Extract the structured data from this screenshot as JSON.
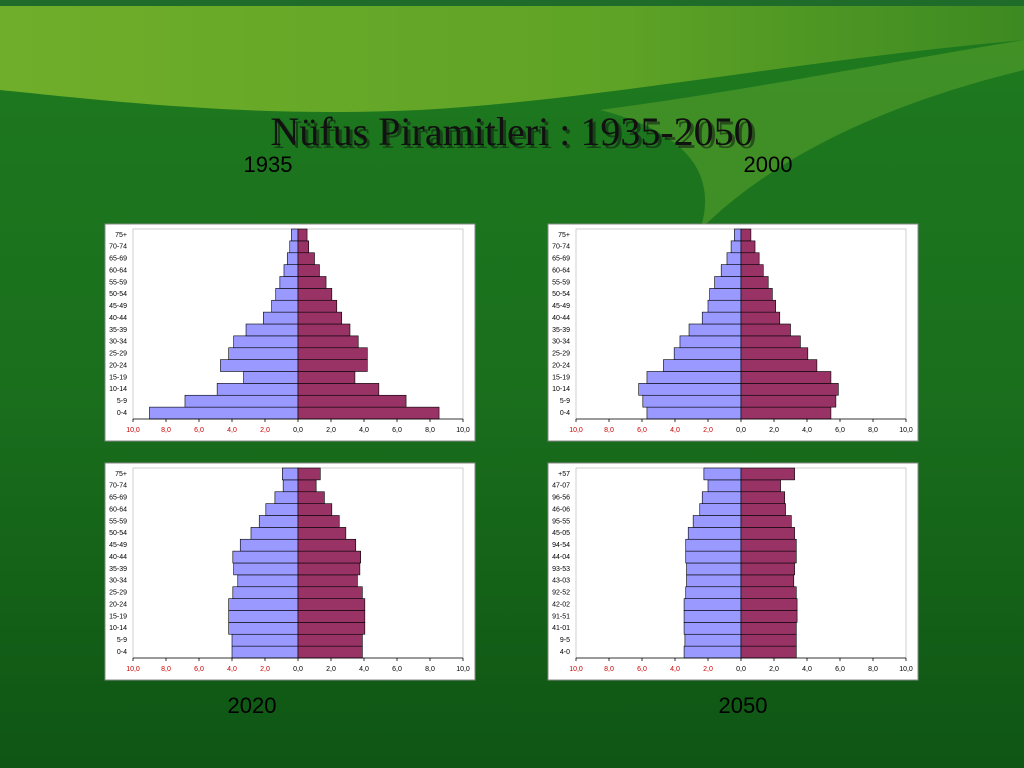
{
  "title": "Nüfus Piramitleri : 1935-2050",
  "chart_data": [
    {
      "type": "pyramid",
      "title": "1935",
      "categories": [
        "0-4",
        "5-9",
        "10-14",
        "15-19",
        "20-24",
        "25-29",
        "30-34",
        "35-39",
        "40-44",
        "45-49",
        "50-54",
        "55-59",
        "60-64",
        "65-69",
        "70-74",
        "75+"
      ],
      "series": [
        {
          "color": "#9999ff",
          "values": [
            -9.0,
            -6.85,
            -4.9,
            -3.3,
            -4.7,
            -4.2,
            -3.9,
            -3.15,
            -2.1,
            -1.6,
            -1.35,
            -1.1,
            -0.85,
            -0.65,
            -0.5,
            -0.4
          ]
        },
        {
          "color": "#993366",
          "values": [
            8.55,
            6.55,
            4.9,
            3.45,
            4.2,
            4.2,
            3.65,
            3.15,
            2.65,
            2.35,
            2.05,
            1.7,
            1.3,
            1.0,
            0.65,
            0.55
          ]
        }
      ],
      "xlim": [
        -10,
        10
      ],
      "xticks": [
        {
          "value": -10,
          "label": "10,0"
        },
        {
          "value": -8,
          "label": "8,0"
        },
        {
          "value": -6,
          "label": "6,0"
        },
        {
          "value": -4,
          "label": "4,0"
        },
        {
          "value": -2,
          "label": "2,0"
        },
        {
          "value": 0,
          "label": "0,0"
        },
        {
          "value": 2,
          "label": "2,0"
        },
        {
          "value": 4,
          "label": "4,0"
        },
        {
          "value": 6,
          "label": "6,0"
        },
        {
          "value": 8,
          "label": "8,0"
        },
        {
          "value": 10,
          "label": "10,0"
        }
      ]
    },
    {
      "type": "pyramid",
      "title": "2000",
      "categories": [
        "0-4",
        "5-9",
        "10-14",
        "15-19",
        "20-24",
        "25-29",
        "30-34",
        "35-39",
        "40-44",
        "45-49",
        "50-54",
        "55-59",
        "60-64",
        "65-69",
        "70-74",
        "75+"
      ],
      "series": [
        {
          "color": "#9999ff",
          "values": [
            -5.7,
            -5.95,
            -6.2,
            -5.7,
            -4.7,
            -4.05,
            -3.7,
            -3.15,
            -2.35,
            -2.0,
            -1.9,
            -1.6,
            -1.2,
            -0.85,
            -0.6,
            -0.4
          ]
        },
        {
          "color": "#993366",
          "values": [
            5.45,
            5.75,
            5.9,
            5.45,
            4.6,
            4.05,
            3.6,
            3.0,
            2.35,
            2.1,
            1.9,
            1.65,
            1.35,
            1.1,
            0.85,
            0.6
          ]
        }
      ],
      "xlim": [
        -10,
        10
      ],
      "xticks": [
        {
          "value": -10,
          "label": "10,0"
        },
        {
          "value": -8,
          "label": "8,0"
        },
        {
          "value": -6,
          "label": "6,0"
        },
        {
          "value": -4,
          "label": "4,0"
        },
        {
          "value": -2,
          "label": "2,0"
        },
        {
          "value": 0,
          "label": "0,0"
        },
        {
          "value": 2,
          "label": "2,0"
        },
        {
          "value": 4,
          "label": "4,0"
        },
        {
          "value": 6,
          "label": "6,0"
        },
        {
          "value": 8,
          "label": "8,0"
        },
        {
          "value": 10,
          "label": "10,0"
        }
      ]
    },
    {
      "type": "pyramid",
      "title": "2020",
      "categories": [
        "0-4",
        "5-9",
        "10-14",
        "15-19",
        "20-24",
        "25-29",
        "30-34",
        "35-39",
        "40-44",
        "45-49",
        "50-54",
        "55-59",
        "60-64",
        "65-69",
        "70-74",
        "75+"
      ],
      "series": [
        {
          "color": "#9999ff",
          "values": [
            -4.0,
            -4.0,
            -4.2,
            -4.2,
            -4.2,
            -3.95,
            -3.65,
            -3.9,
            -3.95,
            -3.5,
            -2.85,
            -2.35,
            -1.95,
            -1.4,
            -0.9,
            -0.95
          ]
        },
        {
          "color": "#993366",
          "values": [
            3.9,
            3.9,
            4.05,
            4.05,
            4.05,
            3.9,
            3.6,
            3.75,
            3.8,
            3.5,
            2.9,
            2.5,
            2.05,
            1.6,
            1.1,
            1.35
          ]
        }
      ],
      "xlim": [
        -10,
        10
      ],
      "xticks": [
        {
          "value": -10,
          "label": "10,0"
        },
        {
          "value": -8,
          "label": "8,0"
        },
        {
          "value": -6,
          "label": "6,0"
        },
        {
          "value": -4,
          "label": "4,0"
        },
        {
          "value": -2,
          "label": "2,0"
        },
        {
          "value": 0,
          "label": "0,0"
        },
        {
          "value": 2,
          "label": "2,0"
        },
        {
          "value": 4,
          "label": "4,0"
        },
        {
          "value": 6,
          "label": "6,0"
        },
        {
          "value": 8,
          "label": "8,0"
        },
        {
          "value": 10,
          "label": "10,0"
        }
      ]
    },
    {
      "type": "pyramid",
      "title": "2050",
      "categories": [
        "4-0",
        "9-5",
        "41-01",
        "91-51",
        "42-02",
        "92-52",
        "43-03",
        "93-53",
        "44-04",
        "94-54",
        "45-05",
        "95-55",
        "46-06",
        "96-56",
        "47-07",
        "+57"
      ],
      "series": [
        {
          "color": "#9999ff",
          "values": [
            -3.45,
            -3.4,
            -3.45,
            -3.45,
            -3.45,
            -3.35,
            -3.3,
            -3.3,
            -3.35,
            -3.35,
            -3.2,
            -2.9,
            -2.5,
            -2.35,
            -2.0,
            -2.25
          ]
        },
        {
          "color": "#993366",
          "values": [
            3.35,
            3.35,
            3.35,
            3.4,
            3.4,
            3.35,
            3.2,
            3.25,
            3.35,
            3.35,
            3.25,
            3.05,
            2.7,
            2.65,
            2.4,
            3.25
          ]
        }
      ],
      "xlim": [
        -10,
        10
      ],
      "xticks": [
        {
          "value": -10,
          "label": "10,0"
        },
        {
          "value": -8,
          "label": "8,0"
        },
        {
          "value": -6,
          "label": "6,0"
        },
        {
          "value": -4,
          "label": "4,0"
        },
        {
          "value": -2,
          "label": "2,0"
        },
        {
          "value": 0,
          "label": "0,0"
        },
        {
          "value": 2,
          "label": "2,0"
        },
        {
          "value": 4,
          "label": "4,0"
        },
        {
          "value": 6,
          "label": "6,0"
        },
        {
          "value": 8,
          "label": "8,0"
        },
        {
          "value": 10,
          "label": "10,0"
        }
      ]
    }
  ]
}
